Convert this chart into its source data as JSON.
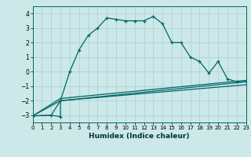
{
  "xlabel": "Humidex (Indice chaleur)",
  "bg_color": "#cce8e8",
  "grid_color": "#aacfcf",
  "line_color": "#006666",
  "xlim": [
    0,
    23
  ],
  "ylim": [
    -3.5,
    4.5
  ],
  "xticks": [
    0,
    1,
    2,
    3,
    4,
    5,
    6,
    7,
    8,
    9,
    10,
    11,
    12,
    13,
    14,
    15,
    16,
    17,
    18,
    19,
    20,
    21,
    22,
    23
  ],
  "yticks": [
    -3,
    -2,
    -1,
    0,
    1,
    2,
    3,
    4
  ],
  "line1_x": [
    0,
    2,
    3,
    3,
    4,
    5,
    6,
    7,
    8,
    9,
    10,
    11,
    12,
    13,
    14,
    15,
    16,
    17,
    18,
    19,
    20,
    21,
    22,
    23
  ],
  "line1_y": [
    -3.05,
    -3.0,
    -3.1,
    -2.0,
    0.0,
    1.5,
    2.5,
    3.0,
    3.7,
    3.6,
    3.5,
    3.5,
    3.5,
    3.8,
    3.3,
    2.0,
    2.0,
    1.0,
    0.7,
    -0.1,
    0.7,
    -0.5,
    -0.7,
    -0.7
  ],
  "line2_x": [
    0,
    2,
    3,
    23
  ],
  "line2_y": [
    -3.05,
    -3.0,
    -2.0,
    -0.7
  ],
  "line3_x": [
    0,
    3,
    23
  ],
  "line3_y": [
    -3.05,
    -2.0,
    -0.9
  ],
  "line4_x": [
    0,
    3,
    23
  ],
  "line4_y": [
    -3.05,
    -1.85,
    -0.6
  ]
}
